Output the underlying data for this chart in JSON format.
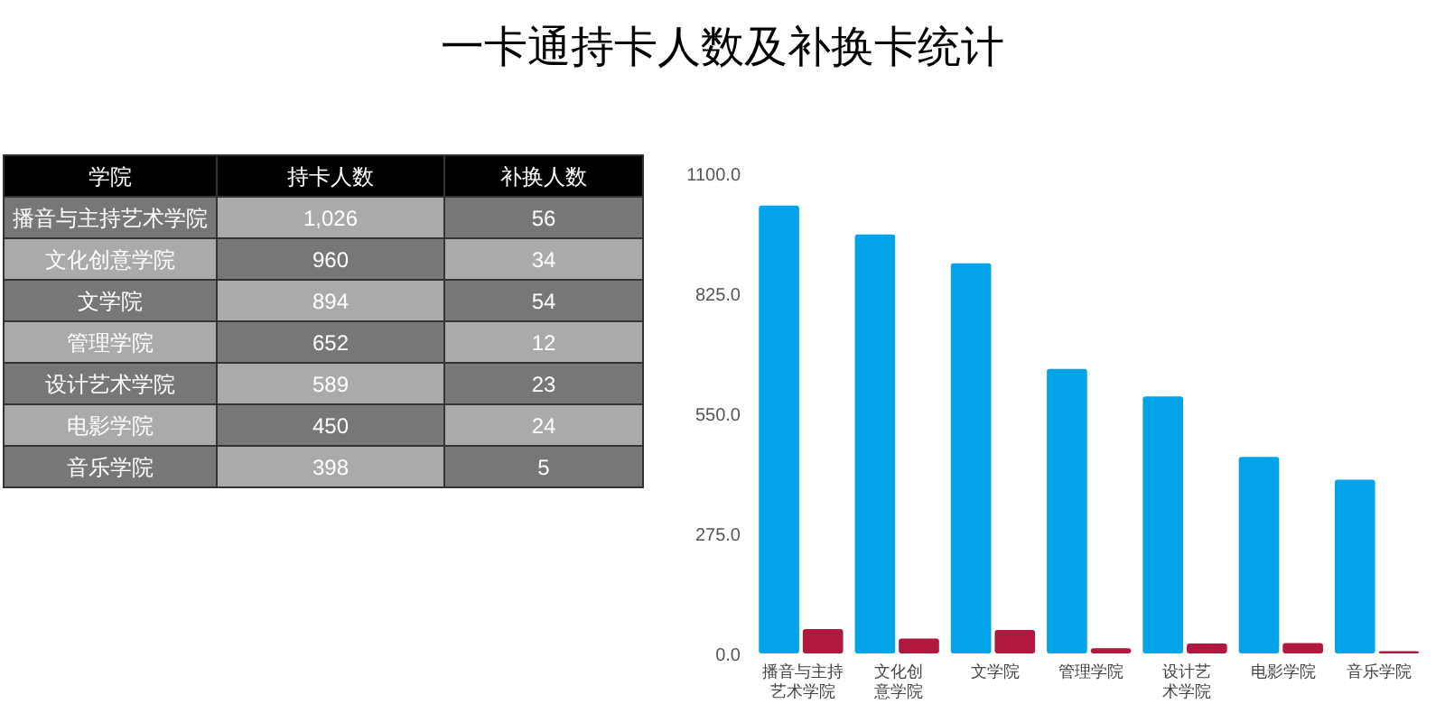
{
  "chart_data": [
    {
      "type": "other",
      "annotations": [
        "学院",
        "持卡人数",
        "补换人数",
        "播音与主持艺术学院",
        "1,026",
        "56",
        "文化创意学院",
        "960",
        "34",
        "文学院",
        "894",
        "54",
        "管理学院",
        "652",
        "12",
        "设计艺术学院",
        "589",
        "23",
        "电影学院",
        "450",
        "24",
        "音乐学院",
        "398",
        "5"
      ]
    },
    {
      "type": "bar",
      "title": "一卡通持卡人数及补换卡统计",
      "categories": [
        "播音与主持艺术学院",
        "文化创意学院",
        "文学院",
        "管理学院",
        "设计艺术学院",
        "电影学院",
        "音乐学院"
      ],
      "series": [
        {
          "color": "#03a3ea",
          "values": [
            1026,
            960,
            894,
            652,
            589,
            450,
            398
          ]
        },
        {
          "color": "#b0183e",
          "values": [
            56,
            34,
            54,
            12,
            23,
            24,
            5
          ]
        }
      ],
      "ylim": [
        0,
        1100
      ],
      "yticks": [
        {
          "value": 0,
          "label": "0.0"
        },
        {
          "value": 275,
          "label": "275.0"
        },
        {
          "value": 550,
          "label": "550.0"
        },
        {
          "value": 825,
          "label": "825.0"
        },
        {
          "value": 1100,
          "label": "1100.0"
        }
      ]
    }
  ]
}
